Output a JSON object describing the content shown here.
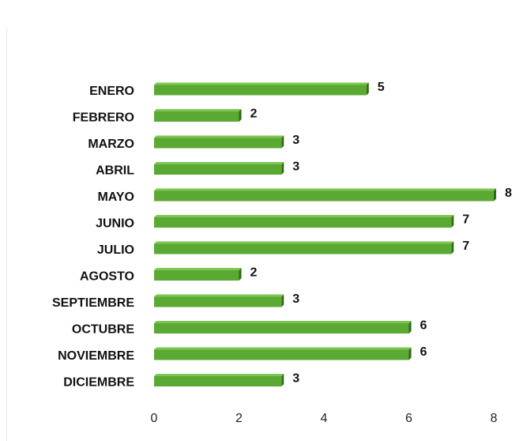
{
  "chart_data": {
    "type": "bar",
    "orientation": "horizontal",
    "categories": [
      "ENERO",
      "FEBRERO",
      "MARZO",
      "ABRIL",
      "MAYO",
      "JUNIO",
      "JULIO",
      "AGOSTO",
      "SEPTIEMBRE",
      "OCTUBRE",
      "NOVIEMBRE",
      "DICIEMBRE"
    ],
    "values": [
      5,
      2,
      3,
      3,
      8,
      7,
      7,
      2,
      3,
      6,
      6,
      3
    ],
    "color": "#5aa932",
    "xlim": [
      0,
      8
    ],
    "xticks": [
      0,
      2,
      4,
      6,
      8
    ],
    "grid": false
  }
}
